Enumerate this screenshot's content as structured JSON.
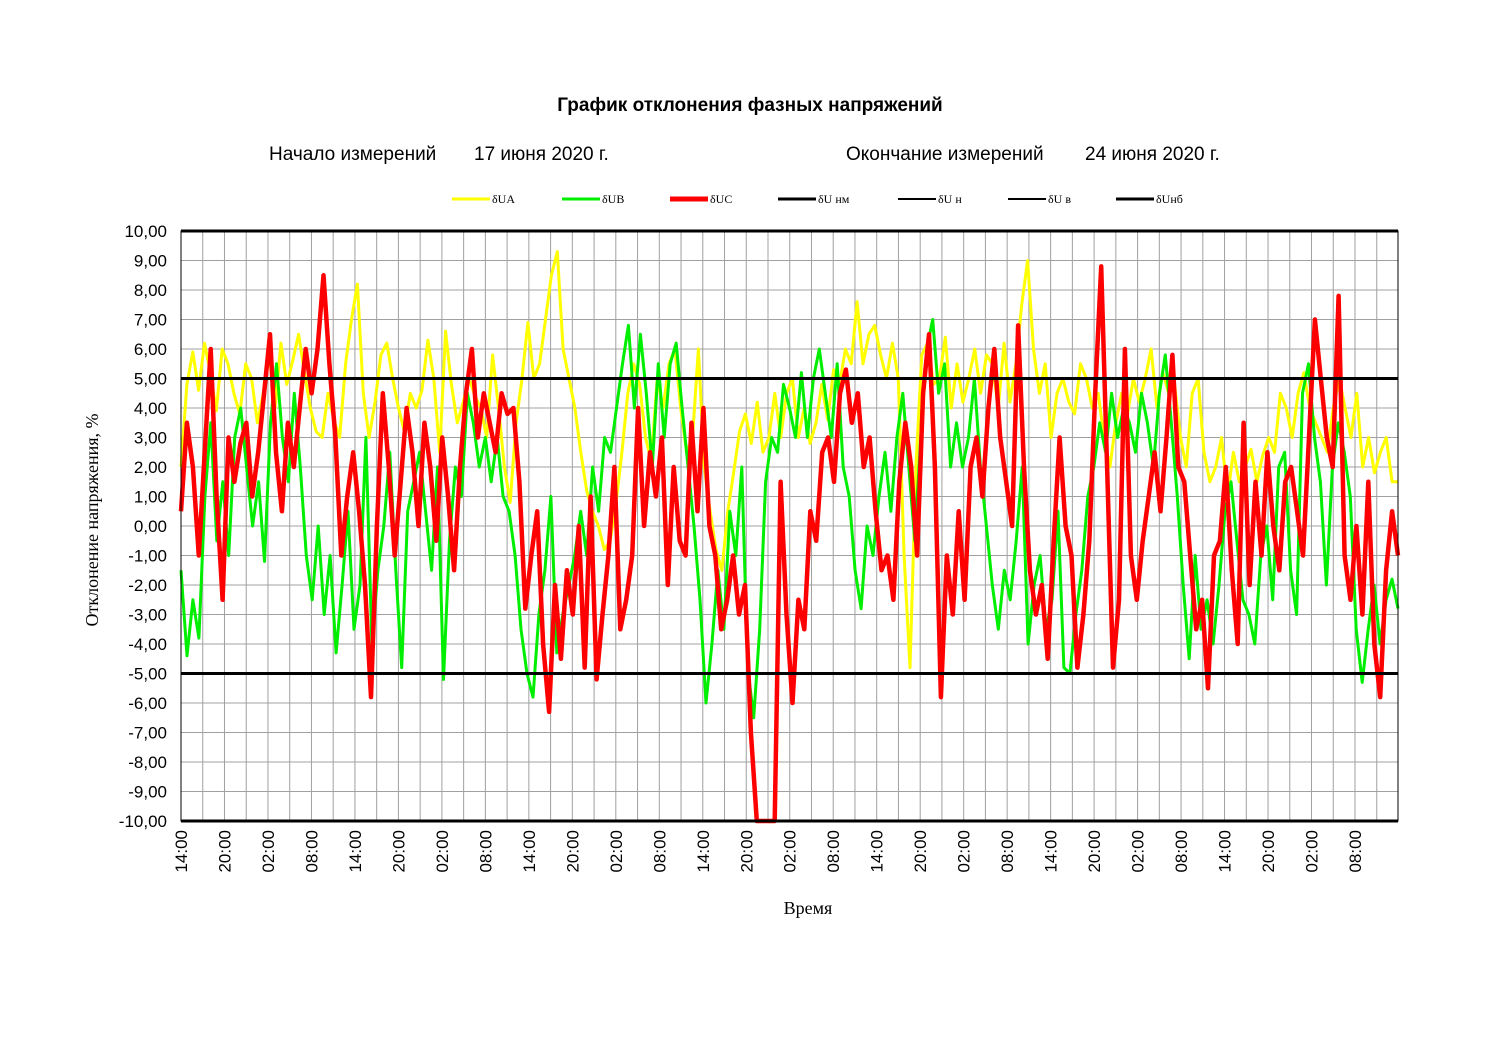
{
  "header": {
    "title": "График отклонения фазных напряжений",
    "start_label": "Начало измерений",
    "start_date": "17 июня 2020 г.",
    "end_label": "Окончание измерений",
    "end_date": "24 июня 2020 г."
  },
  "chart_data": {
    "type": "line",
    "xlabel": "Время",
    "ylabel": "Отклонение напряжения, %",
    "ylim": [
      -10,
      10
    ],
    "y_ticks": [
      "10,00",
      "9,00",
      "8,00",
      "7,00",
      "6,00",
      "5,00",
      "4,00",
      "3,00",
      "2,00",
      "1,00",
      "0,00",
      "-1,00",
      "-2,00",
      "-3,00",
      "-4,00",
      "-5,00",
      "-6,00",
      "-7,00",
      "-8,00",
      "-9,00",
      "-10,00"
    ],
    "x_ticks": [
      "14:00",
      "20:00",
      "02:00",
      "08:00",
      "14:00",
      "20:00",
      "02:00",
      "08:00",
      "14:00",
      "20:00",
      "02:00",
      "08:00",
      "14:00",
      "20:00",
      "02:00",
      "08:00",
      "14:00",
      "20:00",
      "02:00",
      "08:00",
      "14:00",
      "20:00",
      "02:00",
      "08:00",
      "14:00",
      "20:00",
      "02:00",
      "08:00"
    ],
    "grid": true,
    "legend_position": "top",
    "legend": [
      {
        "name": "δUA",
        "color": "#ffff00",
        "width": 3
      },
      {
        "name": "δUB",
        "color": "#00ee00",
        "width": 3
      },
      {
        "name": "δUC",
        "color": "#ff0000",
        "width": 5
      },
      {
        "name": "δU нм",
        "color": "#000000",
        "width": 3
      },
      {
        "name": "δU н",
        "color": "#000000",
        "width": 2
      },
      {
        "name": "δU в",
        "color": "#000000",
        "width": 2
      },
      {
        "name": "δUнб",
        "color": "#000000",
        "width": 3
      }
    ],
    "limits": [
      {
        "name": "δU в",
        "value": 5
      },
      {
        "name": "δU н",
        "value": -5
      },
      {
        "name": "δUнб",
        "value": 10
      },
      {
        "name": "δU нм",
        "value": -10
      }
    ],
    "series": [
      {
        "name": "δUA",
        "color": "#ffff00",
        "values": [
          2.0,
          4.8,
          5.9,
          4.6,
          6.2,
          5.2,
          3.9,
          6.0,
          5.5,
          4.5,
          3.8,
          5.5,
          5.0,
          3.5,
          4.5,
          5.8,
          4.0,
          6.2,
          4.8,
          5.6,
          6.5,
          5.2,
          4.0,
          3.2,
          3.0,
          4.5,
          3.6,
          3.0,
          5.5,
          7.0,
          8.2,
          4.5,
          3.0,
          4.2,
          5.8,
          6.2,
          5.0,
          4.0,
          3.2,
          4.5,
          4.0,
          4.6,
          6.3,
          5.0,
          2.5,
          6.6,
          4.8,
          3.5,
          4.2,
          5.0,
          4.4,
          4.0,
          3.0,
          5.8,
          4.0,
          2.0,
          0.8,
          3.5,
          5.0,
          6.9,
          5.0,
          5.5,
          7.0,
          8.5,
          9.3,
          6.0,
          5.0,
          4.0,
          2.5,
          1.2,
          0.5,
          0.0,
          -0.8,
          -0.5,
          0.8,
          2.5,
          4.5,
          5.5,
          4.8,
          3.0,
          2.2,
          5.0,
          4.0,
          5.5,
          6.0,
          4.0,
          2.5,
          3.0,
          6.0,
          2.0,
          0.5,
          -0.8,
          -1.5,
          0.5,
          1.8,
          3.2,
          3.8,
          2.8,
          4.2,
          2.5,
          3.0,
          4.5,
          3.0,
          4.5,
          5.0,
          3.0,
          4.0,
          2.8,
          3.5,
          4.8,
          3.6,
          5.3,
          4.8,
          6.0,
          5.5,
          7.6,
          5.5,
          6.5,
          6.8,
          5.8,
          5.0,
          6.2,
          5.0,
          -1.0,
          -4.8,
          2.0,
          5.8,
          6.2,
          4.8,
          5.0,
          6.4,
          4.0,
          5.5,
          4.2,
          5.0,
          6.0,
          4.5,
          5.8,
          5.5,
          4.0,
          6.2,
          4.2,
          5.5,
          7.5,
          9.0,
          6.0,
          4.5,
          5.5,
          3.0,
          4.5,
          5.0,
          4.2,
          3.8,
          5.5,
          5.0,
          4.0,
          4.5,
          3.0,
          2.0,
          3.5,
          4.5,
          3.8,
          5.0,
          4.2,
          5.0,
          6.0,
          4.0,
          5.2,
          4.5,
          4.8,
          3.0,
          2.0,
          4.5,
          5.0,
          2.5,
          1.5,
          2.0,
          3.0,
          1.0,
          2.5,
          1.5,
          2.0,
          2.6,
          1.5,
          2.4,
          3.0,
          2.5,
          4.5,
          4.0,
          3.0,
          4.5,
          5.2,
          4.0,
          3.5,
          3.0,
          2.5,
          4.0,
          5.0,
          4.0,
          3.0,
          4.5,
          2.0,
          3.0,
          1.8,
          2.5,
          3.0,
          1.5,
          1.5
        ]
      },
      {
        "name": "δUB",
        "color": "#00ee00",
        "values": [
          -1.5,
          -4.4,
          -2.5,
          -3.8,
          1.0,
          3.5,
          -0.5,
          1.5,
          -1.0,
          3.0,
          4.0,
          2.0,
          0.0,
          1.5,
          -1.2,
          3.5,
          5.5,
          3.0,
          1.5,
          4.5,
          2.0,
          -1.0,
          -2.5,
          0.0,
          -3.0,
          -1.0,
          -4.3,
          -2.0,
          0.5,
          -3.5,
          -2.0,
          3.0,
          -4.0,
          -1.5,
          0.0,
          2.5,
          -1.5,
          -4.8,
          0.5,
          1.5,
          2.5,
          0.5,
          -1.5,
          2.0,
          -5.2,
          -0.5,
          2.0,
          1.0,
          4.5,
          3.5,
          2.0,
          3.0,
          1.5,
          3.0,
          1.0,
          0.5,
          -1.0,
          -3.5,
          -5.0,
          -5.8,
          -3.0,
          -1.5,
          1.0,
          -4.3,
          -3.0,
          -2.0,
          -1.0,
          0.5,
          -1.0,
          2.0,
          0.5,
          3.0,
          2.5,
          4.0,
          5.5,
          6.8,
          4.0,
          6.5,
          4.5,
          2.0,
          5.5,
          3.0,
          5.5,
          6.2,
          4.0,
          2.0,
          0.0,
          -2.5,
          -6.0,
          -4.0,
          -1.5,
          -3.5,
          0.5,
          -1.0,
          2.0,
          -4.8,
          -6.5,
          -3.5,
          1.5,
          3.0,
          2.5,
          4.8,
          4.0,
          3.0,
          5.2,
          3.0,
          5.0,
          6.0,
          4.5,
          3.0,
          5.5,
          2.0,
          1.0,
          -1.5,
          -2.8,
          0.0,
          -1.0,
          1.0,
          2.5,
          0.5,
          3.0,
          4.5,
          2.0,
          -0.5,
          3.0,
          6.0,
          7.0,
          4.5,
          5.5,
          2.0,
          3.5,
          2.0,
          3.0,
          5.0,
          2.0,
          0.0,
          -2.0,
          -3.5,
          -1.5,
          -2.5,
          -0.5,
          2.0,
          -4.0,
          -2.0,
          -1.0,
          -3.5,
          -2.5,
          0.5,
          -4.8,
          -5.0,
          -3.0,
          -1.5,
          1.0,
          2.0,
          3.5,
          2.5,
          4.5,
          3.0,
          4.0,
          3.5,
          2.5,
          4.5,
          3.5,
          2.0,
          4.5,
          5.8,
          3.5,
          1.0,
          -2.0,
          -4.5,
          -1.0,
          -3.5,
          -2.5,
          -4.0,
          -2.0,
          0.5,
          1.5,
          -0.5,
          -2.5,
          -3.0,
          -4.0,
          -1.0,
          0.0,
          -2.5,
          2.0,
          2.5,
          -1.5,
          -3.0,
          4.5,
          5.5,
          3.0,
          1.5,
          -2.0,
          2.0,
          3.5,
          2.5,
          1.0,
          -3.5,
          -5.3,
          -3.5,
          -2.0,
          -4.0,
          -2.5,
          -1.8,
          -2.8
        ]
      },
      {
        "name": "δUC",
        "color": "#ff0000",
        "values": [
          0.5,
          3.5,
          2.0,
          -1.0,
          2.5,
          6.0,
          1.0,
          -2.5,
          3.0,
          1.5,
          2.8,
          3.5,
          1.0,
          2.5,
          4.5,
          6.5,
          2.5,
          0.5,
          3.5,
          2.0,
          4.0,
          6.0,
          4.5,
          6.0,
          8.5,
          5.5,
          3.0,
          -1.0,
          1.0,
          2.5,
          0.5,
          -2.0,
          -5.8,
          0.0,
          4.5,
          2.0,
          -1.0,
          1.5,
          4.0,
          2.5,
          0.0,
          3.5,
          2.0,
          -0.5,
          3.0,
          1.0,
          -1.5,
          2.0,
          4.5,
          6.0,
          3.0,
          4.5,
          3.5,
          2.5,
          4.5,
          3.8,
          4.0,
          1.5,
          -2.8,
          -1.0,
          0.5,
          -4.0,
          -6.3,
          -2.0,
          -4.5,
          -1.5,
          -3.0,
          0.0,
          -4.8,
          1.0,
          -5.2,
          -3.0,
          -1.0,
          2.0,
          -3.5,
          -2.5,
          -1.0,
          4.0,
          0.0,
          2.5,
          1.0,
          3.0,
          -2.0,
          2.0,
          -0.5,
          -1.0,
          3.5,
          0.5,
          4.0,
          0.0,
          -1.0,
          -3.5,
          -2.5,
          -1.0,
          -3.0,
          -2.0,
          -7.0,
          -10.0,
          -10.0,
          -10.0,
          -10.0,
          1.5,
          -3.0,
          -6.0,
          -2.5,
          -3.5,
          0.5,
          -0.5,
          2.5,
          3.0,
          1.5,
          4.5,
          5.3,
          3.5,
          4.5,
          2.0,
          3.0,
          0.5,
          -1.5,
          -1.0,
          -2.5,
          1.5,
          3.5,
          2.0,
          -1.0,
          4.5,
          6.5,
          2.0,
          -5.8,
          -1.0,
          -3.0,
          0.5,
          -2.5,
          2.0,
          3.0,
          1.0,
          4.0,
          6.0,
          3.0,
          1.5,
          0.0,
          6.8,
          2.0,
          -1.5,
          -3.0,
          -2.0,
          -4.5,
          -0.5,
          3.0,
          0.0,
          -1.0,
          -4.8,
          -3.0,
          -0.5,
          4.5,
          8.8,
          2.0,
          -4.8,
          -2.5,
          6.0,
          -1.0,
          -2.5,
          -0.5,
          1.0,
          2.5,
          0.5,
          3.0,
          5.8,
          2.0,
          1.5,
          -1.0,
          -3.5,
          -2.5,
          -5.5,
          -1.0,
          -0.5,
          2.0,
          -1.5,
          -4.0,
          3.5,
          -2.0,
          1.5,
          -1.0,
          2.5,
          0.0,
          -1.5,
          1.5,
          2.0,
          0.5,
          -1.0,
          3.0,
          7.0,
          5.0,
          3.0,
          2.0,
          7.8,
          -1.0,
          -2.5,
          0.0,
          -3.0,
          1.5,
          -4.0,
          -5.8,
          -1.5,
          0.5,
          -1.0
        ]
      }
    ]
  }
}
